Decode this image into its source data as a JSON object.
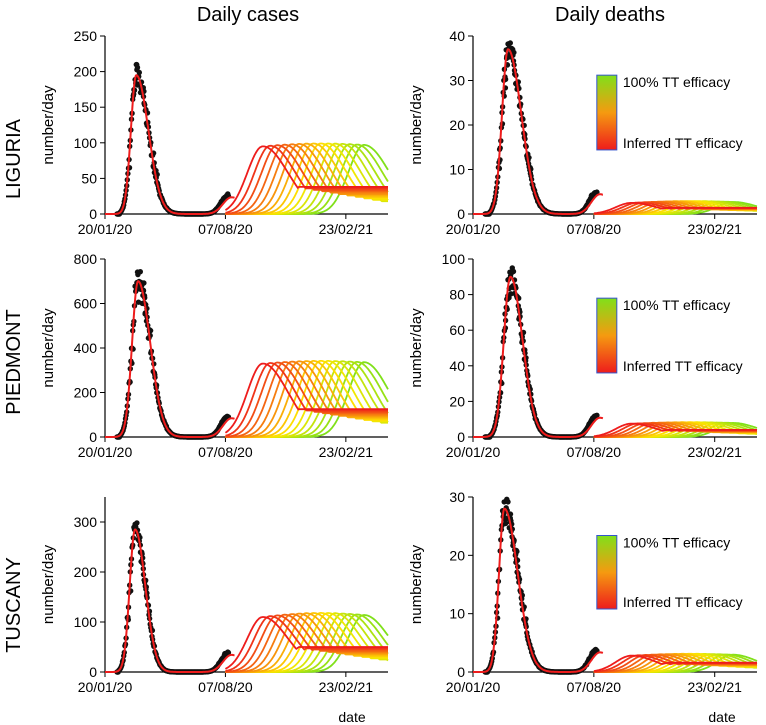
{
  "col_titles": {
    "cases": "Daily cases",
    "deaths": "Daily deaths"
  },
  "row_titles": {
    "liguria": "LIGURIA",
    "piedmont": "PIEDMONT",
    "tuscany": "TUSCANY"
  },
  "ylabel": "number/day",
  "xlabel": "date",
  "x_tick_labels": [
    "20/01/20",
    "07/08/20",
    "23/02/21"
  ],
  "legend": {
    "top": "100% TT efficacy",
    "bottom": "Inferred TT efficacy"
  },
  "colors": {
    "red": "#ee1c1c",
    "yellow": "#ffe800",
    "green": "#80e01a",
    "dots": "#111111",
    "legend_border": "#3355cc"
  },
  "chart_data": [
    {
      "id": "liguria-cases",
      "type": "line",
      "region": "LIGURIA",
      "title": "Daily cases",
      "xlabel": "",
      "ylabel": "number/day",
      "x_range_days": [
        0,
        470
      ],
      "ylim": [
        0,
        250
      ],
      "yticks": [
        0,
        50,
        100,
        150,
        200,
        250
      ],
      "x_ticks": [
        {
          "day": 0,
          "label": "20/01/20"
        },
        {
          "day": 200,
          "label": "07/08/20"
        },
        {
          "day": 400,
          "label": "23/02/21"
        }
      ],
      "wave1": {
        "peak_day": 52,
        "peak": 195,
        "rise_width": 9,
        "fall_width": 20
      },
      "second_wave": {
        "peak_min": 95,
        "peak_max": 100,
        "onset_day_first": 205,
        "onset_step_days": 12,
        "n_curves": 15,
        "rise_width": 26,
        "fall_width": 42,
        "final_level_range": [
          10,
          38
        ]
      },
      "legend": false
    },
    {
      "id": "liguria-deaths",
      "type": "line",
      "region": "LIGURIA",
      "title": "Daily deaths",
      "xlabel": "",
      "ylabel": "number/day",
      "x_range_days": [
        0,
        470
      ],
      "ylim": [
        0,
        40
      ],
      "yticks": [
        0,
        10,
        20,
        30,
        40
      ],
      "x_ticks": [
        {
          "day": 0,
          "label": "20/01/20"
        },
        {
          "day": 200,
          "label": "07/08/20"
        },
        {
          "day": 400,
          "label": "23/02/21"
        }
      ],
      "wave1": {
        "peak_day": 58,
        "peak": 37,
        "rise_width": 10,
        "fall_width": 22
      },
      "second_wave": {
        "peak_min": 2.5,
        "peak_max": 3,
        "onset_day_first": 205,
        "onset_step_days": 12,
        "n_curves": 15,
        "rise_width": 26,
        "fall_width": 42,
        "final_level_range": [
          0.5,
          1.4
        ]
      },
      "legend": true
    },
    {
      "id": "piedmont-cases",
      "type": "line",
      "region": "PIEDMONT",
      "title": "Daily cases",
      "xlabel": "",
      "ylabel": "number/day",
      "x_range_days": [
        0,
        470
      ],
      "ylim": [
        0,
        800
      ],
      "yticks": [
        0,
        200,
        400,
        600,
        800
      ],
      "x_ticks": [
        {
          "day": 0,
          "label": "20/01/20"
        },
        {
          "day": 200,
          "label": "07/08/20"
        },
        {
          "day": 400,
          "label": "23/02/21"
        }
      ],
      "wave1": {
        "peak_day": 55,
        "peak": 700,
        "rise_width": 10,
        "fall_width": 20
      },
      "second_wave": {
        "peak_min": 330,
        "peak_max": 345,
        "onset_day_first": 205,
        "onset_step_days": 12,
        "n_curves": 15,
        "rise_width": 26,
        "fall_width": 42,
        "final_level_range": [
          40,
          125
        ]
      },
      "legend": false
    },
    {
      "id": "piedmont-deaths",
      "type": "line",
      "region": "PIEDMONT",
      "title": "Daily deaths",
      "xlabel": "",
      "ylabel": "number/day",
      "x_range_days": [
        0,
        470
      ],
      "ylim": [
        0,
        100
      ],
      "yticks": [
        0,
        20,
        40,
        60,
        80,
        100
      ],
      "x_ticks": [
        {
          "day": 0,
          "label": "20/01/20"
        },
        {
          "day": 200,
          "label": "07/08/20"
        },
        {
          "day": 400,
          "label": "23/02/21"
        }
      ],
      "wave1": {
        "peak_day": 62,
        "peak": 90,
        "rise_width": 11,
        "fall_width": 20
      },
      "second_wave": {
        "peak_min": 7.5,
        "peak_max": 8.5,
        "onset_day_first": 205,
        "onset_step_days": 12,
        "n_curves": 15,
        "rise_width": 26,
        "fall_width": 42,
        "final_level_range": [
          1,
          4
        ]
      },
      "legend": true
    },
    {
      "id": "tuscany-cases",
      "type": "line",
      "region": "TUSCANY",
      "title": "Daily cases",
      "xlabel": "date",
      "ylabel": "number/day",
      "x_range_days": [
        0,
        470
      ],
      "ylim": [
        0,
        350
      ],
      "yticks": [
        0,
        100,
        200,
        300
      ],
      "x_ticks": [
        {
          "day": 0,
          "label": "20/01/20"
        },
        {
          "day": 200,
          "label": "07/08/20"
        },
        {
          "day": 400,
          "label": "23/02/21"
        }
      ],
      "wave1": {
        "peak_day": 50,
        "peak": 285,
        "rise_width": 9,
        "fall_width": 17
      },
      "second_wave": {
        "peak_min": 110,
        "peak_max": 120,
        "onset_day_first": 205,
        "onset_step_days": 12,
        "n_curves": 15,
        "rise_width": 26,
        "fall_width": 42,
        "final_level_range": [
          15,
          50
        ]
      },
      "legend": false
    },
    {
      "id": "tuscany-deaths",
      "type": "line",
      "region": "TUSCANY",
      "title": "Daily deaths",
      "xlabel": "date",
      "ylabel": "number/day",
      "x_range_days": [
        0,
        470
      ],
      "ylim": [
        0,
        30
      ],
      "yticks": [
        0,
        10,
        20,
        30
      ],
      "x_ticks": [
        {
          "day": 0,
          "label": "20/01/20"
        },
        {
          "day": 200,
          "label": "07/08/20"
        },
        {
          "day": 400,
          "label": "23/02/21"
        }
      ],
      "wave1": {
        "peak_day": 52,
        "peak": 28,
        "rise_width": 9,
        "fall_width": 22
      },
      "second_wave": {
        "peak_min": 2.8,
        "peak_max": 3.2,
        "onset_day_first": 205,
        "onset_step_days": 12,
        "n_curves": 15,
        "rise_width": 26,
        "fall_width": 42,
        "final_level_range": [
          0.5,
          1.6
        ]
      },
      "legend": true
    }
  ]
}
